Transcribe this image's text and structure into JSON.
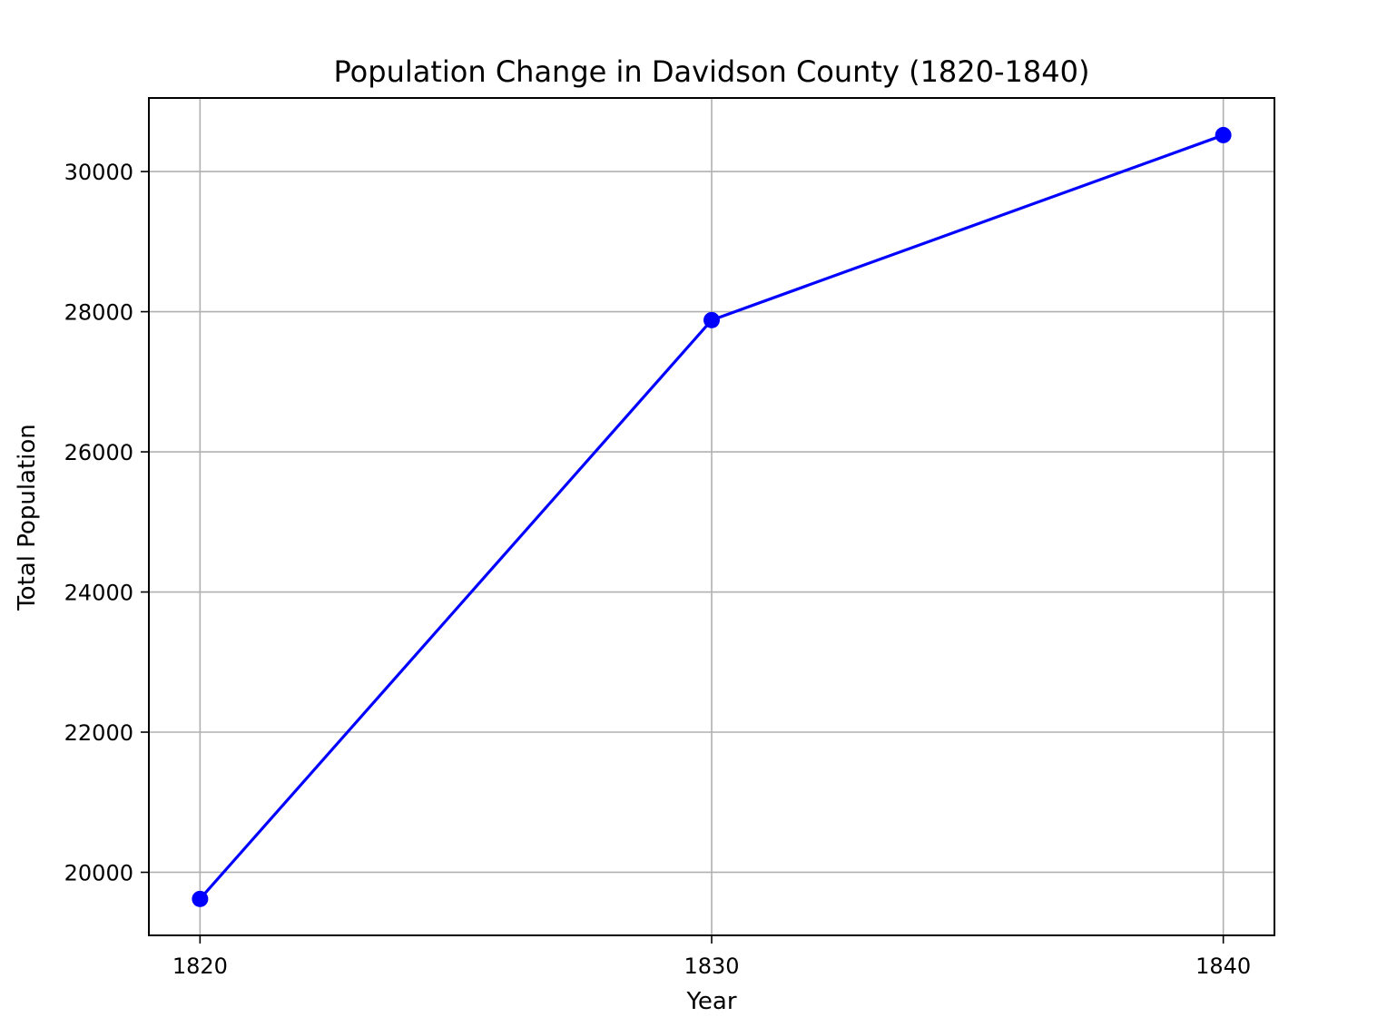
{
  "chart_data": {
    "type": "line",
    "title": "Population Change in Davidson County (1820-1840)",
    "xlabel": "Year",
    "ylabel": "Total Population",
    "x": [
      1820,
      1830,
      1840
    ],
    "xlim": [
      1819,
      1841
    ],
    "ylim": [
      19100,
      31050
    ],
    "xticks": [
      1820,
      1830,
      1840
    ],
    "yticks": [
      20000,
      22000,
      24000,
      26000,
      28000,
      30000
    ],
    "grid": true,
    "series": [
      {
        "values": [
          19620,
          27880,
          30520
        ],
        "color": "#0000ff",
        "marker": "circle"
      }
    ]
  }
}
